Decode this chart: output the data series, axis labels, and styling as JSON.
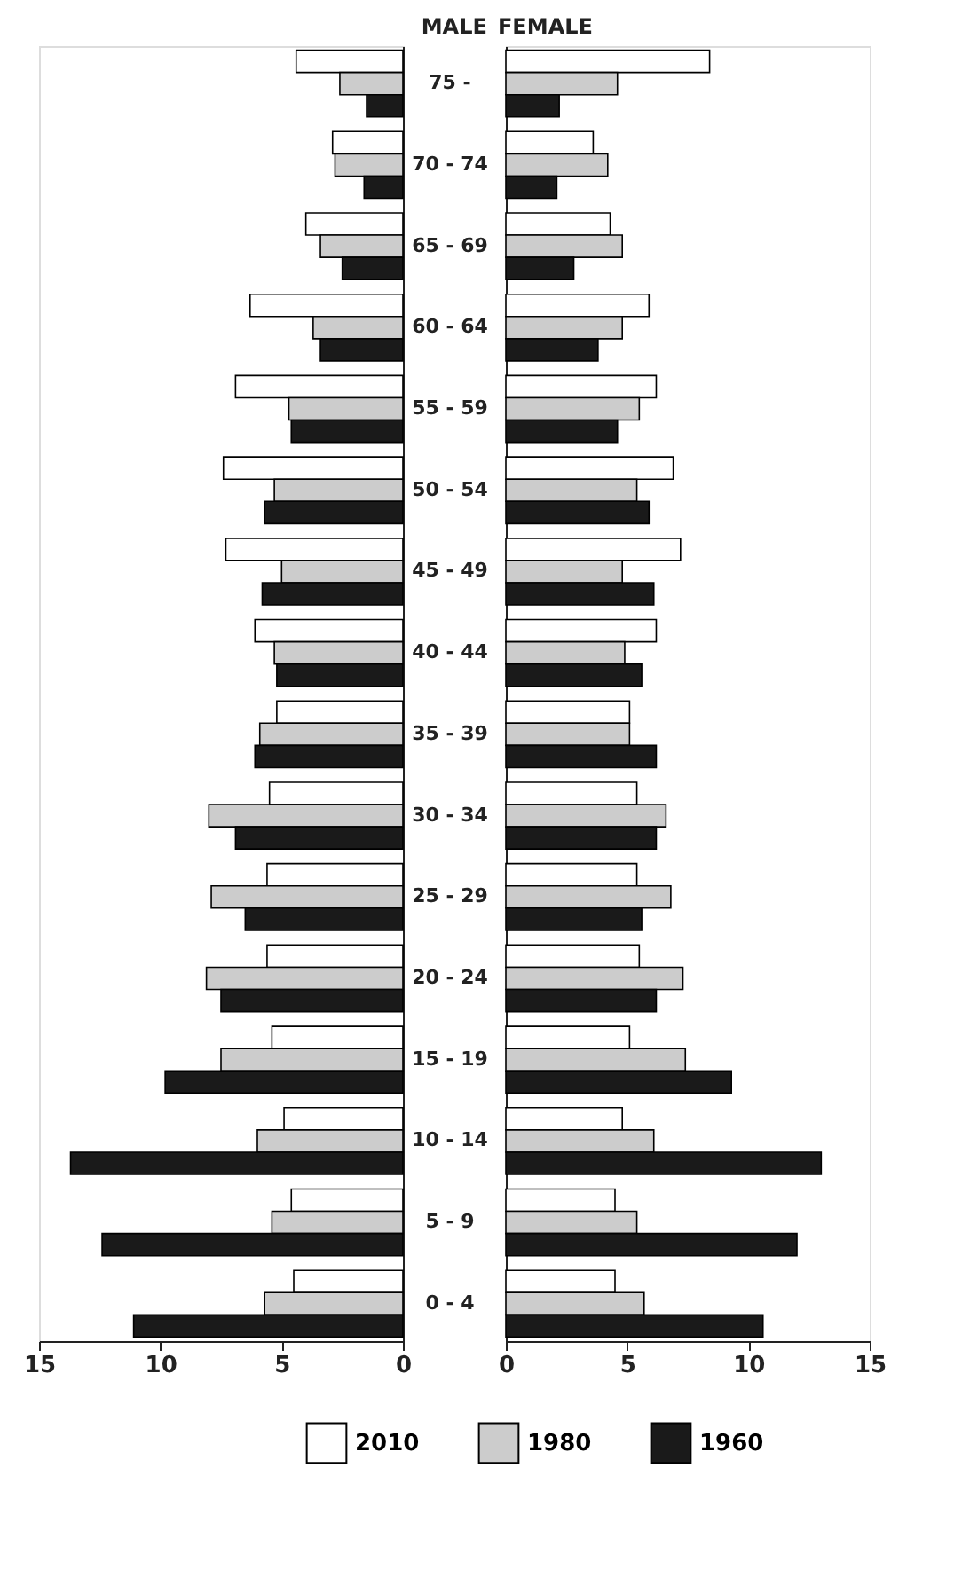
{
  "chart_data": [
    {
      "type": "bar",
      "orientation": "horizontal",
      "title": "MALE",
      "legend": "bottom",
      "grid": false,
      "categories": [
        "75 -",
        "70 - 74",
        "65 - 69",
        "60 - 64",
        "55 - 59",
        "50 - 54",
        "45 - 49",
        "40 - 44",
        "35 - 39",
        "30 - 34",
        "25 - 29",
        "20 - 24",
        "15 - 19",
        "10 - 14",
        "5 - 9",
        "0 - 4"
      ],
      "xlim": [
        15,
        0
      ],
      "xticks": [
        15,
        10,
        5,
        0
      ],
      "series": [
        {
          "name": "2010",
          "color": "#ffffff",
          "values": [
            4.4,
            2.9,
            4.0,
            6.3,
            6.9,
            7.4,
            7.3,
            6.1,
            5.2,
            5.5,
            5.6,
            5.6,
            5.4,
            4.9,
            4.6,
            4.5
          ]
        },
        {
          "name": "1980",
          "color": "#cccccc",
          "values": [
            2.6,
            2.8,
            3.4,
            3.7,
            4.7,
            5.3,
            5.0,
            5.3,
            5.9,
            8.0,
            7.9,
            8.1,
            7.5,
            6.0,
            5.4,
            5.7
          ]
        },
        {
          "name": "1960",
          "color": "#1a1a1a",
          "values": [
            1.5,
            1.6,
            2.5,
            3.4,
            4.6,
            5.7,
            5.8,
            5.2,
            6.1,
            6.9,
            6.5,
            7.5,
            9.8,
            13.7,
            12.4,
            11.1
          ]
        }
      ]
    },
    {
      "type": "bar",
      "orientation": "horizontal",
      "title": "FEMALE",
      "legend": "bottom",
      "grid": false,
      "tick_labels": "x",
      "categories": [
        "75 -",
        "70 - 74",
        "65 - 69",
        "60 - 64",
        "55 - 59",
        "50 - 54",
        "45 - 49",
        "40 - 44",
        "35 - 39",
        "30 - 34",
        "25 - 29",
        "20 - 24",
        "15 - 19",
        "10 - 14",
        "5 - 9",
        "0 - 4"
      ],
      "xlim": [
        0,
        15
      ],
      "xticks": [
        0,
        5,
        10,
        15
      ],
      "series": [
        {
          "name": "2010",
          "color": "#ffffff",
          "values": [
            8.4,
            3.6,
            4.3,
            5.9,
            6.2,
            6.9,
            7.2,
            6.2,
            5.1,
            5.4,
            5.4,
            5.5,
            5.1,
            4.8,
            4.5,
            4.5
          ]
        },
        {
          "name": "1980",
          "color": "#cccccc",
          "values": [
            4.6,
            4.2,
            4.8,
            4.8,
            5.5,
            5.4,
            4.8,
            4.9,
            5.1,
            6.6,
            6.8,
            7.3,
            7.4,
            6.1,
            5.4,
            5.7
          ]
        },
        {
          "name": "1960",
          "color": "#1a1a1a",
          "values": [
            2.2,
            2.1,
            2.8,
            3.8,
            4.6,
            5.9,
            6.1,
            5.6,
            6.2,
            6.2,
            5.6,
            6.2,
            9.3,
            13.0,
            12.0,
            10.6
          ]
        }
      ]
    }
  ]
}
